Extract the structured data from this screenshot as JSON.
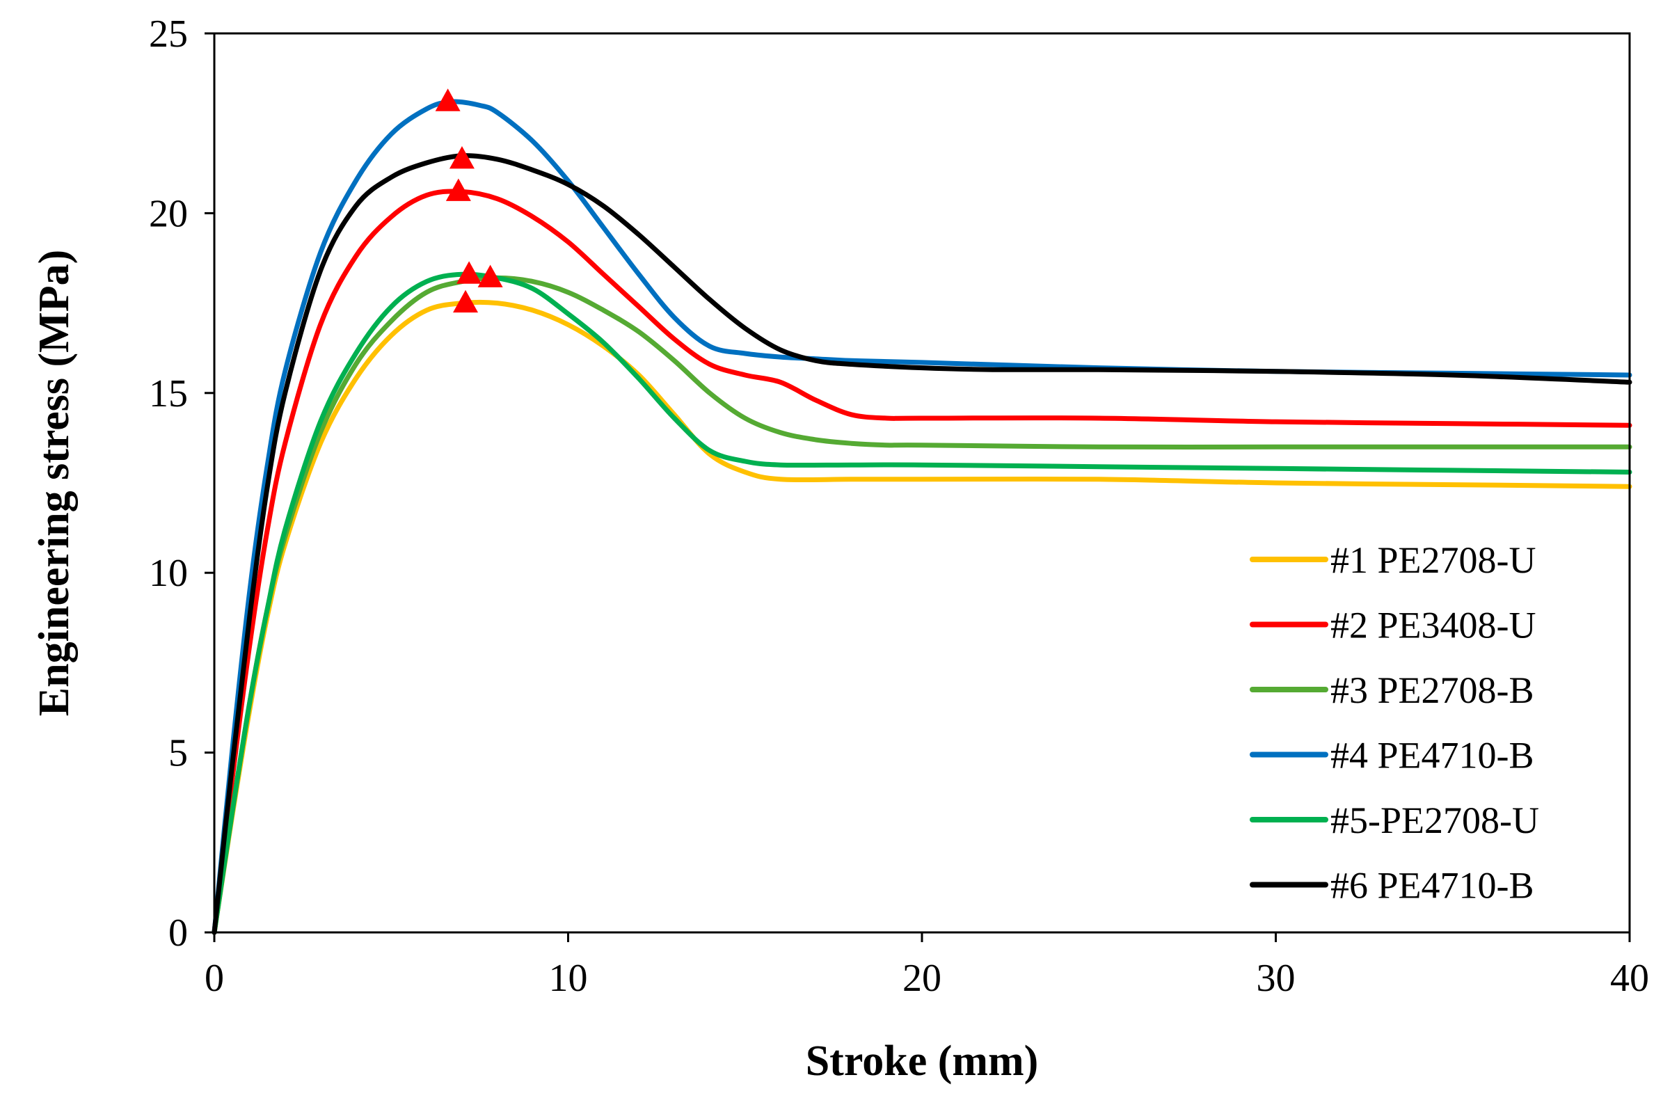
{
  "chart_data": {
    "type": "line",
    "title": "",
    "xlabel": "Stroke (mm)",
    "ylabel": "Engineering stress (MPa)",
    "xlim": [
      0,
      40
    ],
    "ylim": [
      0,
      25
    ],
    "x_ticks": [
      0,
      10,
      20,
      30,
      40
    ],
    "y_ticks": [
      0,
      5,
      10,
      15,
      20,
      25
    ],
    "grid": false,
    "legend_position": "bottom-right",
    "series": [
      {
        "name": "#1 PE2708-U",
        "color": "#FFC000",
        "x": [
          0,
          0.5,
          1,
          1.5,
          2,
          3,
          4,
          5,
          6,
          7,
          8,
          9,
          10,
          11,
          12,
          13,
          14,
          15,
          16,
          18,
          20,
          25,
          30,
          35,
          40
        ],
        "y": [
          0,
          3.2,
          6.2,
          8.8,
          10.8,
          13.6,
          15.4,
          16.6,
          17.3,
          17.5,
          17.5,
          17.3,
          16.9,
          16.3,
          15.5,
          14.4,
          13.3,
          12.8,
          12.6,
          12.6,
          12.6,
          12.6,
          12.5,
          12.45,
          12.4
        ]
      },
      {
        "name": "#2 PE3408-U",
        "color": "#FF0000",
        "x": [
          0,
          0.5,
          1,
          1.5,
          2,
          3,
          4,
          5,
          6,
          7,
          8,
          9,
          10,
          11,
          12,
          13,
          14,
          15,
          16,
          17,
          18,
          19,
          20,
          25,
          30,
          35,
          40
        ],
        "y": [
          0,
          4.2,
          8.0,
          11.2,
          13.6,
          16.9,
          18.8,
          19.9,
          20.5,
          20.6,
          20.4,
          19.9,
          19.2,
          18.3,
          17.4,
          16.5,
          15.8,
          15.5,
          15.3,
          14.8,
          14.4,
          14.3,
          14.3,
          14.3,
          14.2,
          14.15,
          14.1
        ]
      },
      {
        "name": "#3 PE2708-B",
        "color": "#55AA33",
        "x": [
          0,
          0.5,
          1,
          1.5,
          2,
          3,
          4,
          5,
          6,
          7,
          8,
          9,
          10,
          11,
          12,
          13,
          14,
          15,
          16,
          17,
          18,
          19,
          20,
          25,
          30,
          35,
          40
        ],
        "y": [
          0,
          3.3,
          6.4,
          9.0,
          11.0,
          13.9,
          15.8,
          17.0,
          17.8,
          18.1,
          18.2,
          18.1,
          17.8,
          17.3,
          16.7,
          15.9,
          15.0,
          14.3,
          13.9,
          13.7,
          13.6,
          13.55,
          13.55,
          13.5,
          13.5,
          13.5,
          13.5
        ]
      },
      {
        "name": "#4 PE4710-B",
        "color": "#0070C0",
        "x": [
          0,
          0.5,
          1,
          1.5,
          2,
          3,
          4,
          5,
          6,
          6.7,
          7.5,
          8,
          9,
          10,
          11,
          12,
          13,
          14,
          15,
          16,
          17,
          18,
          20,
          25,
          30,
          35,
          40
        ],
        "y": [
          0,
          5.0,
          9.5,
          13.0,
          15.6,
          18.9,
          20.9,
          22.2,
          22.9,
          23.1,
          23.0,
          22.8,
          22.0,
          20.9,
          19.6,
          18.3,
          17.1,
          16.3,
          16.1,
          16.0,
          15.95,
          15.9,
          15.85,
          15.7,
          15.6,
          15.55,
          15.5
        ]
      },
      {
        "name": "#5-PE2708-U",
        "color": "#00B050",
        "x": [
          0,
          0.5,
          1,
          1.5,
          2,
          3,
          4,
          5,
          6,
          7,
          8,
          9,
          10,
          11,
          12,
          13,
          14,
          15,
          16,
          18,
          20,
          25,
          30,
          35,
          40
        ],
        "y": [
          0,
          3.3,
          6.4,
          9.0,
          11.2,
          14.2,
          16.1,
          17.4,
          18.1,
          18.3,
          18.2,
          17.9,
          17.2,
          16.4,
          15.4,
          14.3,
          13.4,
          13.1,
          13.0,
          13.0,
          13.0,
          12.95,
          12.9,
          12.85,
          12.8
        ]
      },
      {
        "name": "#6 PE4710-B",
        "color": "#000000",
        "x": [
          0,
          0.5,
          1,
          1.5,
          2,
          3,
          4,
          5,
          6,
          7,
          8,
          9,
          10,
          11,
          12,
          13,
          14,
          15,
          16,
          17,
          18,
          20,
          22,
          25,
          30,
          35,
          40
        ],
        "y": [
          0,
          4.6,
          8.8,
          12.4,
          15.0,
          18.4,
          20.2,
          21.0,
          21.4,
          21.6,
          21.5,
          21.2,
          20.8,
          20.2,
          19.4,
          18.5,
          17.6,
          16.8,
          16.2,
          15.9,
          15.8,
          15.7,
          15.65,
          15.65,
          15.6,
          15.5,
          15.3
        ]
      }
    ],
    "markers": {
      "shape": "triangle",
      "color": "#FF0000",
      "points": [
        {
          "x": 6.6,
          "y": 23.1
        },
        {
          "x": 7.0,
          "y": 21.5
        },
        {
          "x": 6.9,
          "y": 20.6
        },
        {
          "x": 7.2,
          "y": 18.3
        },
        {
          "x": 7.8,
          "y": 18.2
        },
        {
          "x": 7.1,
          "y": 17.5
        }
      ]
    }
  }
}
